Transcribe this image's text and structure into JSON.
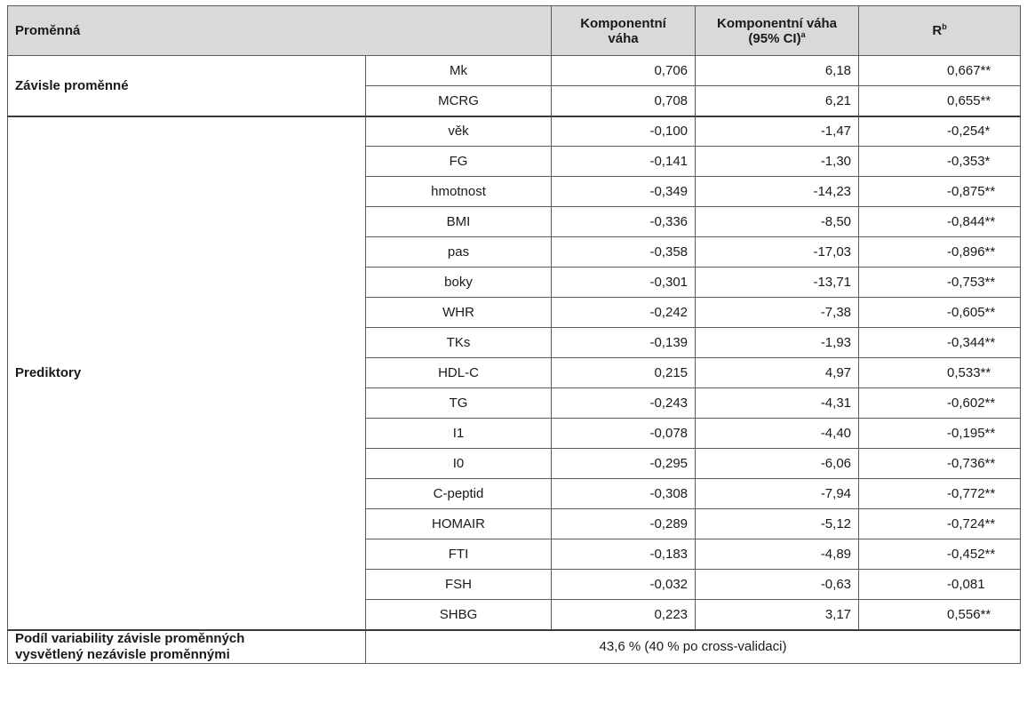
{
  "header": {
    "variable": "Proměnná",
    "weight_line1": "Komponentní",
    "weight_line2": "váha",
    "weight_ci_line1": "Komponentní váha",
    "weight_ci_line2": "(95% CI)",
    "weight_ci_sup": "a",
    "r_label": "R",
    "r_sup": "b"
  },
  "groups": {
    "dependent": "Závisle proměnné",
    "predictors": "Prediktory"
  },
  "dependent_rows": [
    {
      "name": "Mk",
      "weight": "0,706",
      "ci": "6,18",
      "r": "0,667**"
    },
    {
      "name": "MCRG",
      "weight": "0,708",
      "ci": "6,21",
      "r": "0,655**"
    }
  ],
  "predictor_rows": [
    {
      "name": "věk",
      "weight": "-0,100",
      "ci": "-1,47",
      "r": "-0,254*"
    },
    {
      "name": "FG",
      "weight": "-0,141",
      "ci": "-1,30",
      "r": "-0,353*"
    },
    {
      "name": "hmotnost",
      "weight": "-0,349",
      "ci": "-14,23",
      "r": "-0,875**"
    },
    {
      "name": "BMI",
      "weight": "-0,336",
      "ci": "-8,50",
      "r": "-0,844**"
    },
    {
      "name": "pas",
      "weight": "-0,358",
      "ci": "-17,03",
      "r": "-0,896**"
    },
    {
      "name": "boky",
      "weight": "-0,301",
      "ci": "-13,71",
      "r": "-0,753**"
    },
    {
      "name": "WHR",
      "weight": "-0,242",
      "ci": "-7,38",
      "r": "-0,605**"
    },
    {
      "name": "TKs",
      "weight": "-0,139",
      "ci": "-1,93",
      "r": "-0,344**"
    },
    {
      "name": "HDL-C",
      "weight": "0,215",
      "ci": "4,97",
      "r": "0,533**"
    },
    {
      "name": "TG",
      "weight": "-0,243",
      "ci": "-4,31",
      "r": "-0,602**"
    },
    {
      "name": "I1",
      "weight": "-0,078",
      "ci": "-4,40",
      "r": "-0,195**"
    },
    {
      "name": "I0",
      "weight": "-0,295",
      "ci": "-6,06",
      "r": "-0,736**"
    },
    {
      "name": "C-peptid",
      "weight": "-0,308",
      "ci": "-7,94",
      "r": "-0,772**"
    },
    {
      "name": "HOMAIR",
      "weight": "-0,289",
      "ci": "-5,12",
      "r": "-0,724**"
    },
    {
      "name": "FTI",
      "weight": "-0,183",
      "ci": "-4,89",
      "r": "-0,452**"
    },
    {
      "name": "FSH",
      "weight": "-0,032",
      "ci": "-0,63",
      "r": "-0,081"
    },
    {
      "name": "SHBG",
      "weight": "0,223",
      "ci": "3,17",
      "r": "0,556**"
    }
  ],
  "footer": {
    "label_line1": "Podíl variability závisle proměnných",
    "label_line2": "vysvětlený nezávisle proměnnými",
    "value": "43,6 % (40 % po cross-validaci)"
  }
}
